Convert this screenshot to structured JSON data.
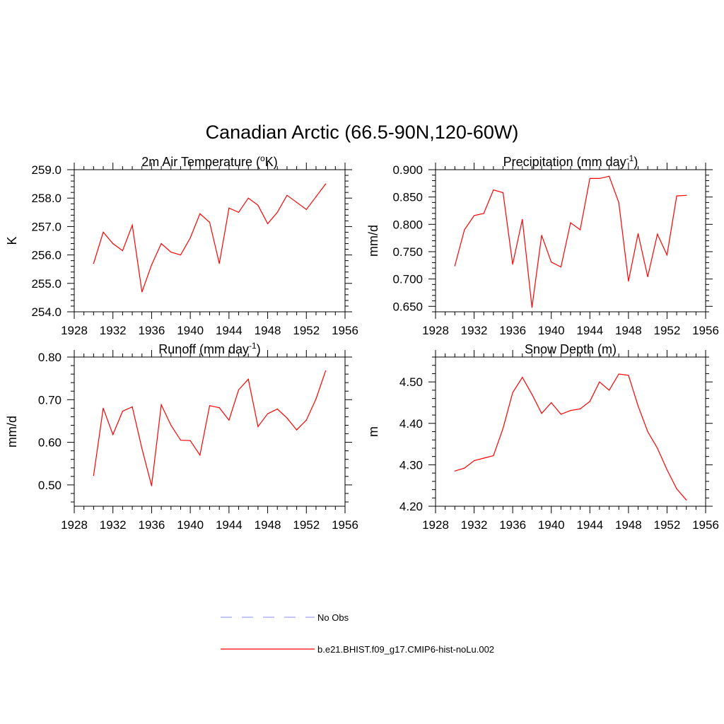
{
  "page": {
    "title": "Canadian Arctic (66.5-90N,120-60W)"
  },
  "legend": [
    {
      "label": "No Obs",
      "color": "#a0a0ff",
      "style": "dashed"
    },
    {
      "label": "b.e21.BHIST.f09_g17.CMIP6-hist-noLu.002",
      "color": "#ff0000",
      "style": "solid"
    }
  ],
  "chart_data": [
    {
      "type": "line",
      "title_main": "2m Air Temperature (",
      "title_sup": "o",
      "title_rest": "K)",
      "ylabel": "K",
      "xlim": [
        1928,
        1956
      ],
      "ylim": [
        254.0,
        259.0
      ],
      "x_ticks": [
        "1928",
        "1932",
        "1936",
        "1940",
        "1944",
        "1948",
        "1952",
        "1956"
      ],
      "y_ticks": [
        "254.0",
        "255.0",
        "256.0",
        "257.0",
        "258.0",
        "259.0"
      ],
      "color": "#ff0000",
      "x": [
        1930,
        1931,
        1932,
        1933,
        1934,
        1935,
        1936,
        1937,
        1938,
        1939,
        1940,
        1941,
        1942,
        1943,
        1944,
        1945,
        1946,
        1947,
        1948,
        1949,
        1950,
        1951,
        1952,
        1953,
        1954
      ],
      "values": [
        255.7,
        256.8,
        256.4,
        256.15,
        257.05,
        254.7,
        255.65,
        256.4,
        256.1,
        256.0,
        256.6,
        257.45,
        257.15,
        255.7,
        257.65,
        257.5,
        258.0,
        257.75,
        257.1,
        257.5,
        258.1,
        257.85,
        257.6,
        258.05,
        258.5
      ]
    },
    {
      "type": "line",
      "title_main": "Precipitation (mm day",
      "title_sup": "-1",
      "title_rest": ")",
      "ylabel": "mm/d",
      "xlim": [
        1928,
        1956
      ],
      "ylim": [
        0.64,
        0.9
      ],
      "x_ticks": [
        "1928",
        "1932",
        "1936",
        "1940",
        "1944",
        "1948",
        "1952",
        "1956"
      ],
      "y_ticks": [
        "0.650",
        "0.700",
        "0.750",
        "0.800",
        "0.850",
        "0.900"
      ],
      "color": "#ff0000",
      "x": [
        1930,
        1931,
        1932,
        1933,
        1934,
        1935,
        1936,
        1937,
        1938,
        1939,
        1940,
        1941,
        1942,
        1943,
        1944,
        1945,
        1946,
        1947,
        1948,
        1949,
        1950,
        1951,
        1952,
        1953,
        1954
      ],
      "values": [
        0.724,
        0.79,
        0.816,
        0.82,
        0.863,
        0.858,
        0.727,
        0.809,
        0.648,
        0.78,
        0.731,
        0.722,
        0.803,
        0.79,
        0.884,
        0.884,
        0.888,
        0.84,
        0.696,
        0.783,
        0.704,
        0.782,
        0.744,
        0.852,
        0.853
      ]
    },
    {
      "type": "line",
      "title_main": "Runoff (mm day",
      "title_sup": "-1",
      "title_rest": ")",
      "ylabel": "mm/d",
      "xlim": [
        1928,
        1956
      ],
      "ylim": [
        0.45,
        0.8
      ],
      "x_ticks": [
        "1928",
        "1932",
        "1936",
        "1940",
        "1944",
        "1948",
        "1952",
        "1956"
      ],
      "y_ticks": [
        "0.50",
        "0.60",
        "0.70",
        "0.80"
      ],
      "color": "#ff0000",
      "x": [
        1930,
        1931,
        1932,
        1933,
        1934,
        1935,
        1936,
        1937,
        1938,
        1939,
        1940,
        1941,
        1942,
        1943,
        1944,
        1945,
        1946,
        1947,
        1948,
        1949,
        1950,
        1951,
        1952,
        1953,
        1954
      ],
      "values": [
        0.522,
        0.68,
        0.618,
        0.673,
        0.683,
        0.585,
        0.498,
        0.688,
        0.64,
        0.605,
        0.604,
        0.57,
        0.686,
        0.681,
        0.652,
        0.723,
        0.748,
        0.637,
        0.667,
        0.678,
        0.657,
        0.629,
        0.652,
        0.702,
        0.768
      ]
    },
    {
      "type": "line",
      "title_main": "Snow Depth (m)",
      "title_sup": "",
      "title_rest": "",
      "ylabel": "m",
      "xlim": [
        1928,
        1956
      ],
      "ylim": [
        4.2,
        4.56
      ],
      "x_ticks": [
        "1928",
        "1932",
        "1936",
        "1940",
        "1944",
        "1948",
        "1952",
        "1956"
      ],
      "y_ticks": [
        "4.20",
        "4.30",
        "4.40",
        "4.50"
      ],
      "color": "#ff0000",
      "x": [
        1930,
        1931,
        1932,
        1933,
        1934,
        1935,
        1936,
        1937,
        1938,
        1939,
        1940,
        1941,
        1942,
        1943,
        1944,
        1945,
        1946,
        1947,
        1948,
        1949,
        1950,
        1951,
        1952,
        1953,
        1954
      ],
      "values": [
        4.285,
        4.292,
        4.31,
        4.316,
        4.322,
        4.388,
        4.474,
        4.511,
        4.47,
        4.424,
        4.45,
        4.422,
        4.431,
        4.435,
        4.453,
        4.5,
        4.48,
        4.519,
        4.516,
        4.442,
        4.38,
        4.34,
        4.288,
        4.242,
        4.215
      ]
    }
  ]
}
